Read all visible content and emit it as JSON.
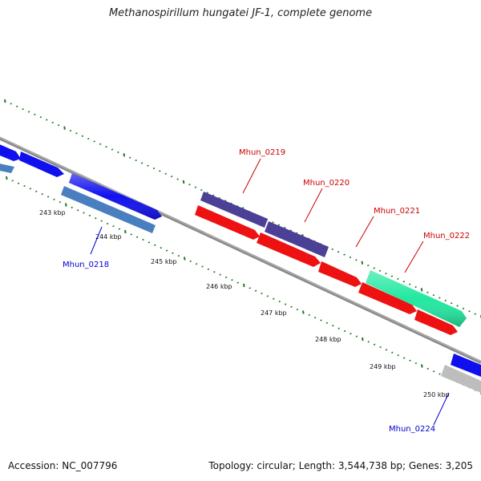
{
  "title": "Methanospirillum hungatei JF-1, complete genome",
  "footer": {
    "accession": "Accession: NC_007796",
    "summary": "Topology: circular; Length: 3,544,738 bp; Genes: 3,205"
  },
  "colors": {
    "backbone": "#8a8a8a",
    "tick": "#1f7a1f",
    "label_forward": "#cc0000",
    "label_reverse": "#0000cc"
  },
  "scale_labels": [
    "243 kbp",
    "244 kbp",
    "245 kbp",
    "246 kbp",
    "247 kbp",
    "248 kbp",
    "249 kbp",
    "250 kbp"
  ],
  "genes": [
    {
      "id": "g-a",
      "name": "",
      "color": "#1010ee",
      "strand": "forward"
    },
    {
      "id": "g-b",
      "name": "",
      "color": "#1010ee",
      "strand": "forward"
    },
    {
      "id": "g-c",
      "name": "",
      "color": "#1010ee",
      "strand": "forward"
    },
    {
      "id": "g-d",
      "name": "",
      "color": "#4a7fbf",
      "strand": "reverse"
    },
    {
      "id": "g-e",
      "name": "Mhun_0218",
      "color": "#4a7fbf",
      "strand": "reverse"
    },
    {
      "id": "g-f",
      "name": "Mhun_0219",
      "color": "#4b3f96",
      "strand": "forward"
    },
    {
      "id": "g-g",
      "name": "Mhun_0220",
      "color": "#4b3f96",
      "strand": "forward"
    },
    {
      "id": "g-h",
      "name": "Mhun_0221",
      "color": "#ee1111",
      "strand": "forward"
    },
    {
      "id": "g-i",
      "name": "Mhun_0222",
      "color": "#22e8a0",
      "strand": "forward"
    },
    {
      "id": "g-j",
      "name": "",
      "color": "#1010ee",
      "strand": "forward"
    },
    {
      "id": "g-k",
      "name": "Mhun_0224",
      "color": "#bdbdbd",
      "strand": "reverse"
    }
  ]
}
